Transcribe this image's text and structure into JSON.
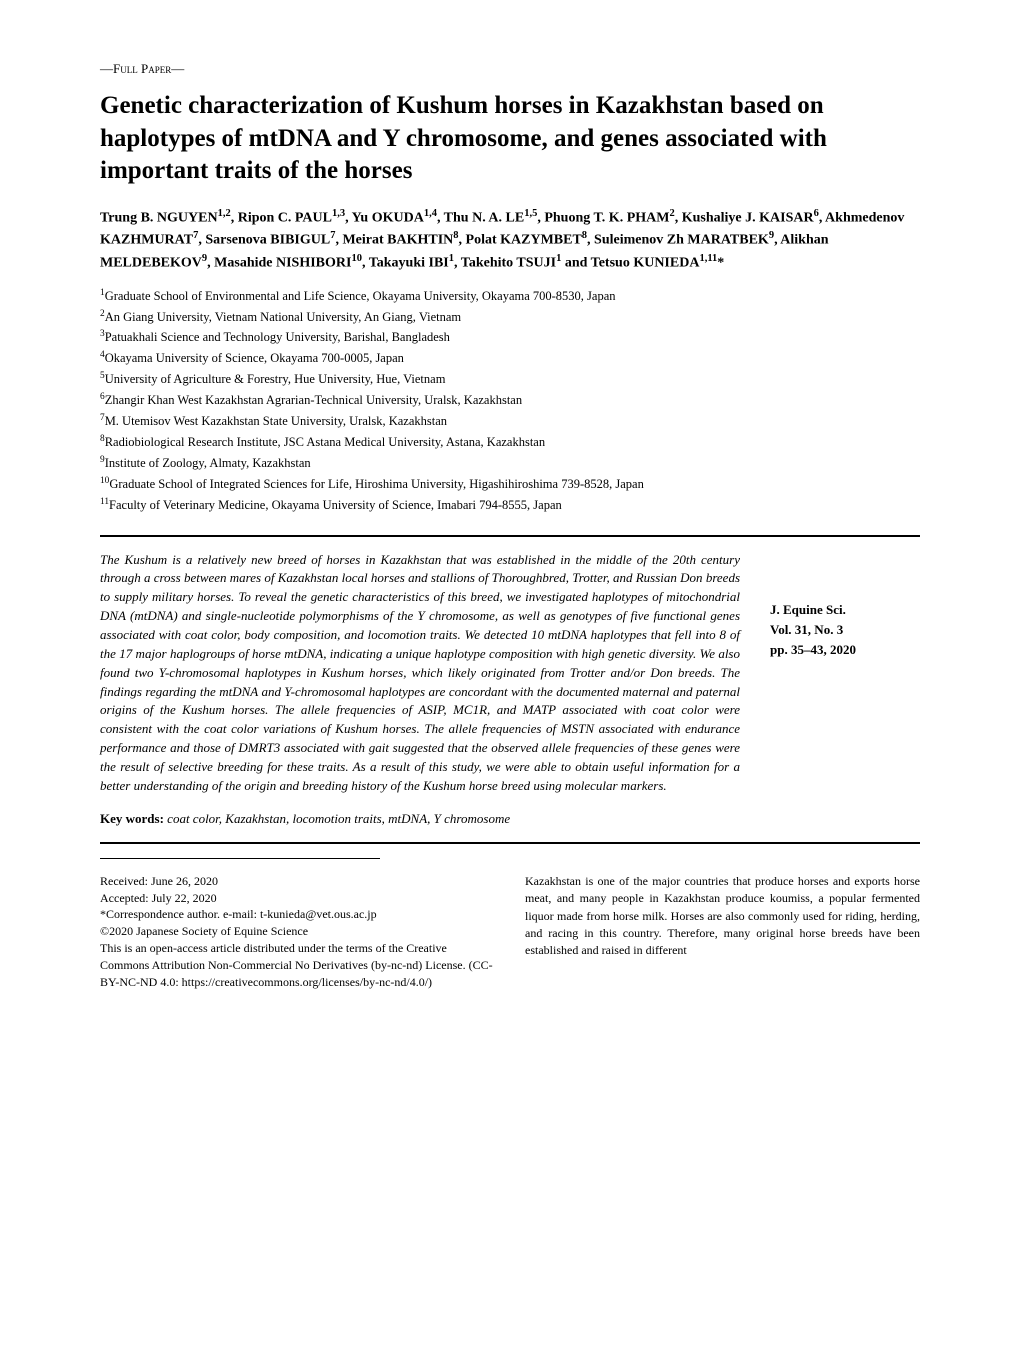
{
  "paper_type": "—Full Paper—",
  "title": "Genetic characterization of Kushum horses in Kazakhstan based on haplotypes of mtDNA and Y chromosome, and genes associated with important traits of the horses",
  "authors_html": "Trung B. NGUYEN<sup>1,2</sup>, Ripon C. PAUL<sup>1,3</sup>, Yu OKUDA<sup>1,4</sup>, Thu N. A. LE<sup>1,5</sup>, Phuong T. K. PHAM<sup>2</sup>, Kushaliye J. KAISAR<sup>6</sup>, Akhmedenov KAZHMURAT<sup>7</sup>, Sarsenova BIBIGUL<sup>7</sup>, Meirat BAKHTIN<sup>8</sup>, Polat KAZYMBET<sup>8</sup>, Suleimenov Zh MARATBEK<sup>9</sup>, Alikhan MELDEBEKOV<sup>9</sup>, Masahide NISHIBORI<sup>10</sup>, Takayuki IBI<sup>1</sup>, Takehito TSUJI<sup>1</sup> and Tetsuo KUNIEDA<sup>1,11</sup>*",
  "affiliations": [
    "<sup>1</sup>Graduate School of Environmental and Life Science, Okayama University, Okayama 700-8530, Japan",
    "<sup>2</sup>An Giang University, Vietnam National University, An Giang, Vietnam",
    "<sup>3</sup>Patuakhali Science and Technology University, Barishal, Bangladesh",
    "<sup>4</sup>Okayama University of Science, Okayama 700-0005, Japan",
    "<sup>5</sup>University of Agriculture & Forestry, Hue University, Hue, Vietnam",
    "<sup>6</sup>Zhangir Khan West Kazakhstan Agrarian-Technical University, Uralsk, Kazakhstan",
    "<sup>7</sup>M. Utemisov West Kazakhstan State University, Uralsk, Kazakhstan",
    "<sup>8</sup>Radiobiological Research Institute, JSC Astana Medical University, Astana, Kazakhstan",
    "<sup>9</sup>Institute of Zoology, Almaty, Kazakhstan",
    "<sup>10</sup>Graduate School of Integrated Sciences for Life, Hiroshima University, Higashihiroshima 739-8528, Japan",
    "<sup>11</sup>Faculty of Veterinary Medicine, Okayama University of Science, Imabari 794-8555, Japan"
  ],
  "abstract": "The Kushum is a relatively new breed of horses in Kazakhstan that was established in the middle of the 20th century through a cross between mares of Kazakhstan local horses and stallions of Thoroughbred, Trotter, and Russian Don breeds to supply military horses. To reveal the genetic characteristics of this breed, we investigated haplotypes of mitochondrial DNA (mtDNA) and single-nucleotide polymorphisms of the Y chromosome, as well as genotypes of five functional genes associated with coat color, body composition, and locomotion traits. We detected 10 mtDNA haplotypes that fell into 8 of the 17 major haplogroups of horse mtDNA, indicating a unique haplotype composition with high genetic diversity. We also found two Y-chromosomal haplotypes in Kushum horses, which likely originated from Trotter and/or Don breeds. The findings regarding the mtDNA and Y-chromosomal haplotypes are concordant with the documented maternal and paternal origins of the Kushum horses. The allele frequencies of ASIP, MC1R, and MATP associated with coat color were consistent with the coat color variations of Kushum horses. The allele frequencies of MSTN associated with endurance performance and those of DMRT3 associated with gait suggested that the observed allele frequencies of these genes were the result of selective breeding for these traits. As a result of this study, we were able to obtain useful information for a better understanding of the origin and breeding history of the Kushum horse breed using molecular markers.",
  "keywords_label": "Key words:",
  "keywords": "coat color, Kazakhstan, locomotion traits, mtDNA, Y chromosome",
  "journal": {
    "name": "J. Equine Sci.",
    "volume": "Vol. 31, No. 3",
    "pages": "pp. 35–43, 2020"
  },
  "footer": {
    "received": "Received: June 26, 2020",
    "accepted": "Accepted: July 22, 2020",
    "correspondence": "*Correspondence author. e-mail: t-kunieda@vet.ous.ac.jp",
    "copyright": "©2020 Japanese Society of Equine Science",
    "license": "This is an open-access article distributed under the terms of the Creative Commons Attribution Non-Commercial No Derivatives (by-nc-nd) License. (CC-BY-NC-ND 4.0: https://creativecommons.org/licenses/by-nc-nd/4.0/)"
  },
  "intro": "Kazakhstan is one of the major countries that produce horses and exports horse meat, and many people in Kazakhstan produce koumiss, a popular fermented liquor made from horse milk. Horses are also commonly used for riding, herding, and racing in this country. Therefore, many original horse breeds have been established and raised in different",
  "colors": {
    "text": "#000000",
    "background": "#ffffff",
    "rule": "#000000"
  },
  "typography": {
    "title_fontsize": 25,
    "body_fontsize": 14,
    "abstract_fontsize": 13,
    "footer_fontsize": 12,
    "font_family": "Georgia, Times New Roman, serif"
  }
}
